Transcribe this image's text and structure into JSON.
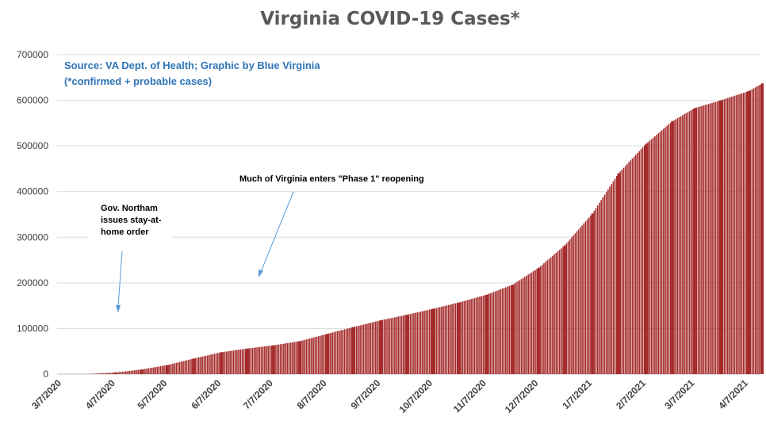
{
  "chart_data": {
    "type": "bar",
    "title": "Virginia COVID-19 Cases*",
    "source_lines": [
      "Source: VA Dept. of Health; Graphic by Blue Virginia",
      "(*confirmed + probable cases)"
    ],
    "xlabel": "",
    "ylabel": "",
    "ylim": [
      0,
      700000
    ],
    "yticks": [
      0,
      100000,
      200000,
      300000,
      400000,
      500000,
      600000,
      700000
    ],
    "ytick_labels": [
      "0",
      "100000",
      "200000",
      "300000",
      "400000",
      "500000",
      "600000",
      "700000"
    ],
    "xtick_labels": [
      "3/7/2020",
      "4/7/2020",
      "5/7/2020",
      "6/7/2020",
      "7/7/2020",
      "8/7/2020",
      "9/7/2020",
      "10/7/2020",
      "11/7/2020",
      "12/7/2020",
      "1/7/2021",
      "2/7/2021",
      "3/7/2021",
      "4/7/2021"
    ],
    "grid": true,
    "bar_color": "#a52a2a",
    "x": [
      "3/7/2020",
      "3/22/2020",
      "4/7/2020",
      "4/22/2020",
      "5/7/2020",
      "5/22/2020",
      "6/7/2020",
      "6/22/2020",
      "7/7/2020",
      "7/22/2020",
      "8/7/2020",
      "8/22/2020",
      "9/7/2020",
      "9/22/2020",
      "10/7/2020",
      "10/22/2020",
      "11/7/2020",
      "11/22/2020",
      "12/7/2020",
      "12/22/2020",
      "1/7/2021",
      "1/22/2021",
      "2/7/2021",
      "2/22/2021",
      "3/7/2021",
      "3/22/2021",
      "4/7/2021",
      "4/15/2021"
    ],
    "values": [
      0,
      200,
      3500,
      10000,
      20000,
      34000,
      48000,
      56000,
      63000,
      72000,
      88000,
      103000,
      118000,
      130000,
      143000,
      157000,
      174000,
      196000,
      233000,
      282000,
      352000,
      440000,
      505000,
      554000,
      583000,
      600000,
      620000,
      637000
    ],
    "annotations": [
      {
        "lines": [
          "Gov. Northam",
          "issues stay-at-",
          "home order"
        ],
        "date": "4/1/2020",
        "value": 140000
      },
      {
        "lines": [
          "Much of Virginia enters \"Phase 1\" reopening"
        ],
        "date": "5/15/2020",
        "value": 210000
      }
    ]
  }
}
